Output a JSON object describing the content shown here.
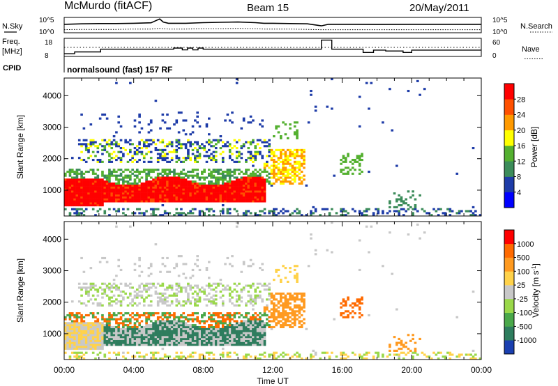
{
  "header": {
    "station": "McMurdo (fitACF)",
    "beam": "Beam 15",
    "date": "20/May/2011"
  },
  "chart_data": [
    {
      "type": "line",
      "name": "noise-panel",
      "left_label": "N.Sky",
      "right_label": "N.Search",
      "left_ticks": [
        "10^5",
        "10^0"
      ],
      "right_ticks": [
        "10^5",
        "10^0"
      ],
      "x_hours": [
        0,
        1,
        2,
        3,
        4,
        5,
        5.5,
        5.7,
        6,
        7,
        8,
        9,
        10,
        11,
        11.5,
        12,
        13,
        14,
        14.8,
        15.2,
        16,
        18,
        20,
        22,
        24
      ],
      "n_sky_level": [
        0.55,
        0.58,
        0.6,
        0.6,
        0.62,
        0.65,
        0.9,
        0.7,
        0.62,
        0.62,
        0.66,
        0.68,
        0.7,
        0.66,
        0.62,
        0.62,
        0.6,
        0.58,
        0.45,
        0.55,
        0.55,
        0.54,
        0.55,
        0.55,
        0.55
      ],
      "n_search_level": [
        0.2,
        0.22,
        0.22,
        0.22,
        0.24,
        0.24,
        0.28,
        0.26,
        0.24,
        0.24,
        0.26,
        0.26,
        0.28,
        0.26,
        0.24,
        0.24,
        0.24,
        0.22,
        0.2,
        0.2,
        0.2,
        0.2,
        0.2,
        0.2,
        0.2
      ]
    },
    {
      "type": "line",
      "name": "frequency-panel",
      "left_label_top": "Freq.",
      "left_label_bottom": "[MHz]",
      "right_label": "Nave",
      "left_ticks": [
        "18",
        "8"
      ],
      "right_ticks": [
        "60",
        "0"
      ],
      "freq_x": [
        0,
        0.6,
        0.6,
        2.1,
        2.1,
        6.3,
        6.3,
        6.8,
        6.8,
        7.1,
        7.1,
        7.4,
        7.4,
        7.7,
        7.7,
        8,
        8,
        14.8,
        14.8,
        15.4,
        15.4,
        17.2,
        17.2,
        17.8,
        17.8,
        18.5,
        18.5,
        19.5,
        19.5,
        20,
        20,
        24
      ],
      "freq_y": [
        9.5,
        9.5,
        10.5,
        10.5,
        12,
        12,
        12.6,
        12.6,
        11.6,
        11.6,
        12.6,
        12.6,
        11.6,
        11.6,
        12.6,
        12.6,
        12,
        12,
        17,
        17,
        12,
        12,
        10.2,
        10.2,
        11.5,
        11.5,
        11,
        11,
        10.2,
        10.2,
        11.5,
        11.5
      ],
      "cpid_label": "CPID",
      "cpid_text": "normalsound (fast) 157 RF"
    },
    {
      "type": "heatmap",
      "name": "power-panel",
      "ylabel": "Slant Range [km]",
      "yticks": [
        "1000",
        "2000",
        "3000",
        "4000"
      ],
      "ylim": [
        180,
        4560
      ],
      "xlim": [
        0,
        24
      ],
      "colorbar_label": "Power [dB]",
      "colorbar_ticks": [
        "4",
        "8",
        "12",
        "16",
        "20",
        "24",
        "28"
      ],
      "colorbar_colors": [
        "#0000ff",
        "#1e3ca8",
        "#3c8c5a",
        "#54b030",
        "#ffff00",
        "#ff9a00",
        "#ff5000",
        "#ff0000"
      ]
    },
    {
      "type": "heatmap",
      "name": "velocity-panel",
      "ylabel": "Slant Range [km]",
      "yticks": [
        "1000",
        "2000",
        "3000",
        "4000"
      ],
      "ylim": [
        180,
        4560
      ],
      "xlim": [
        0,
        24
      ],
      "colorbar_label": "Velocity [m s^-1]",
      "colorbar_ticks": [
        "1000",
        "500",
        "100",
        "25",
        "-25",
        "-100",
        "-500",
        "-1000"
      ],
      "colorbar_colors": [
        "#1a3fb0",
        "#2e7d5e",
        "#4aa84a",
        "#9ad84a",
        "#c8c8c8",
        "#ffd24a",
        "#ff9a20",
        "#ff6a00",
        "#ff0000"
      ]
    }
  ],
  "time_axis": {
    "xlabel": "Time UT",
    "ticks": [
      "00:00",
      "04:00",
      "08:00",
      "12:00",
      "16:00",
      "20:00",
      "00:00"
    ]
  }
}
